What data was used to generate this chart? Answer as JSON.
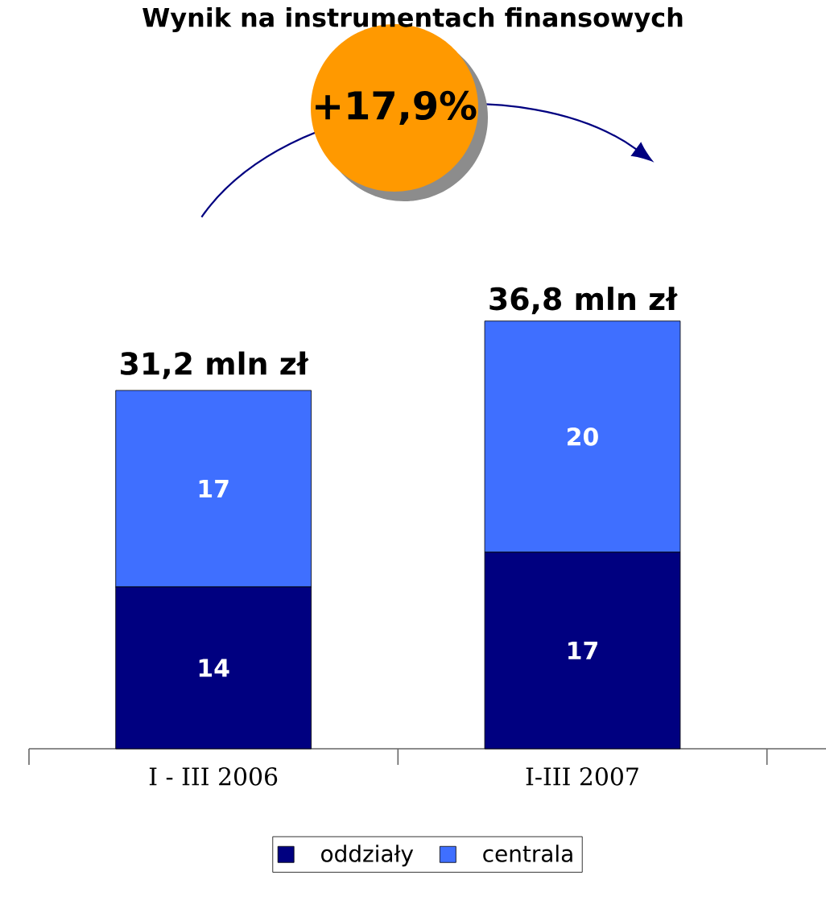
{
  "chart_data": {
    "type": "bar",
    "title": "Wynik na instrumentach finansowych",
    "categories": [
      "I - III 2006",
      "I-III 2007"
    ],
    "series": [
      {
        "name": "oddziały",
        "color": "#000080",
        "values": [
          14,
          17
        ]
      },
      {
        "name": "centrala",
        "color": "#3f6fff",
        "values": [
          17,
          20
        ]
      }
    ],
    "stacked": true,
    "data_labels": true,
    "annotations": [
      "+17,9%",
      {
        "text": "31,2 mln zł",
        "x": "I - III 2006",
        "y": 31.2
      },
      {
        "text": "36,8 mln zł",
        "x": "I-III 2007",
        "y": 36.8
      }
    ],
    "legend": "bottom"
  }
}
